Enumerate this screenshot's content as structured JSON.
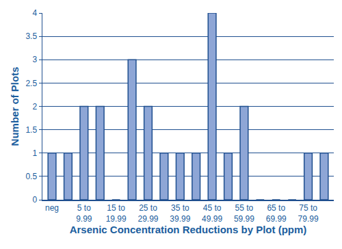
{
  "chart_data": {
    "type": "bar",
    "x_label": "Arsenic Concentration Reductions by Plot (ppm)",
    "y_label": "Number of Plots",
    "categories": [
      "neg",
      null,
      "5 to 9.99",
      null,
      "15 to 19.99",
      null,
      "25 to 29.99",
      null,
      "35 to 39.99",
      null,
      "45 to 49.99",
      null,
      "55 to 59.99",
      null,
      "65 to 69.99",
      null,
      "75 to 79.99",
      null
    ],
    "values": [
      1,
      1,
      2,
      2,
      0,
      3,
      2,
      1,
      1,
      1,
      4,
      1,
      2,
      0,
      0,
      0,
      1,
      1
    ],
    "color": "#8ea6d6",
    "ylim": [
      0,
      4
    ],
    "yticks": [
      0,
      0.5,
      1,
      1.5,
      2,
      2.5,
      3,
      3.5,
      4
    ],
    "grid": true
  }
}
